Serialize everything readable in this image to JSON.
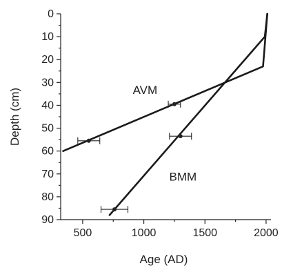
{
  "chart_data": {
    "type": "line",
    "title": "",
    "xlabel": "Age (AD)",
    "ylabel": "Depth (cm)",
    "xlim": [
      320,
      2040
    ],
    "ylim": [
      90,
      0
    ],
    "y_inverted": true,
    "x_ticks": [
      500,
      1000,
      1500,
      2000
    ],
    "y_ticks": [
      0,
      10,
      20,
      30,
      40,
      50,
      60,
      70,
      80,
      90
    ],
    "grid": false,
    "series": [
      {
        "name": "AVM",
        "line": [
          {
            "x": 340,
            "y": 60
          },
          {
            "x": 1975,
            "y": 23
          },
          {
            "x": 2010,
            "y": 0
          }
        ],
        "points": [
          {
            "x": 1250,
            "y": 39.5,
            "xerr_low": 1200,
            "xerr_high": 1300
          },
          {
            "x": 550,
            "y": 55.5,
            "xerr_low": 460,
            "xerr_high": 640
          }
        ]
      },
      {
        "name": "BMM",
        "line": [
          {
            "x": 720,
            "y": 88
          },
          {
            "x": 1990,
            "y": 10
          },
          {
            "x": 2010,
            "y": 0
          }
        ],
        "points": [
          {
            "x": 1300,
            "y": 53.5,
            "xerr_low": 1210,
            "xerr_high": 1390
          },
          {
            "x": 760,
            "y": 85.5,
            "xerr_low": 650,
            "xerr_high": 870
          }
        ]
      }
    ],
    "annotations": [
      {
        "text": "AVM",
        "x": 1010,
        "y": 35
      },
      {
        "text": "BMM",
        "x": 1320,
        "y": 73
      }
    ]
  }
}
